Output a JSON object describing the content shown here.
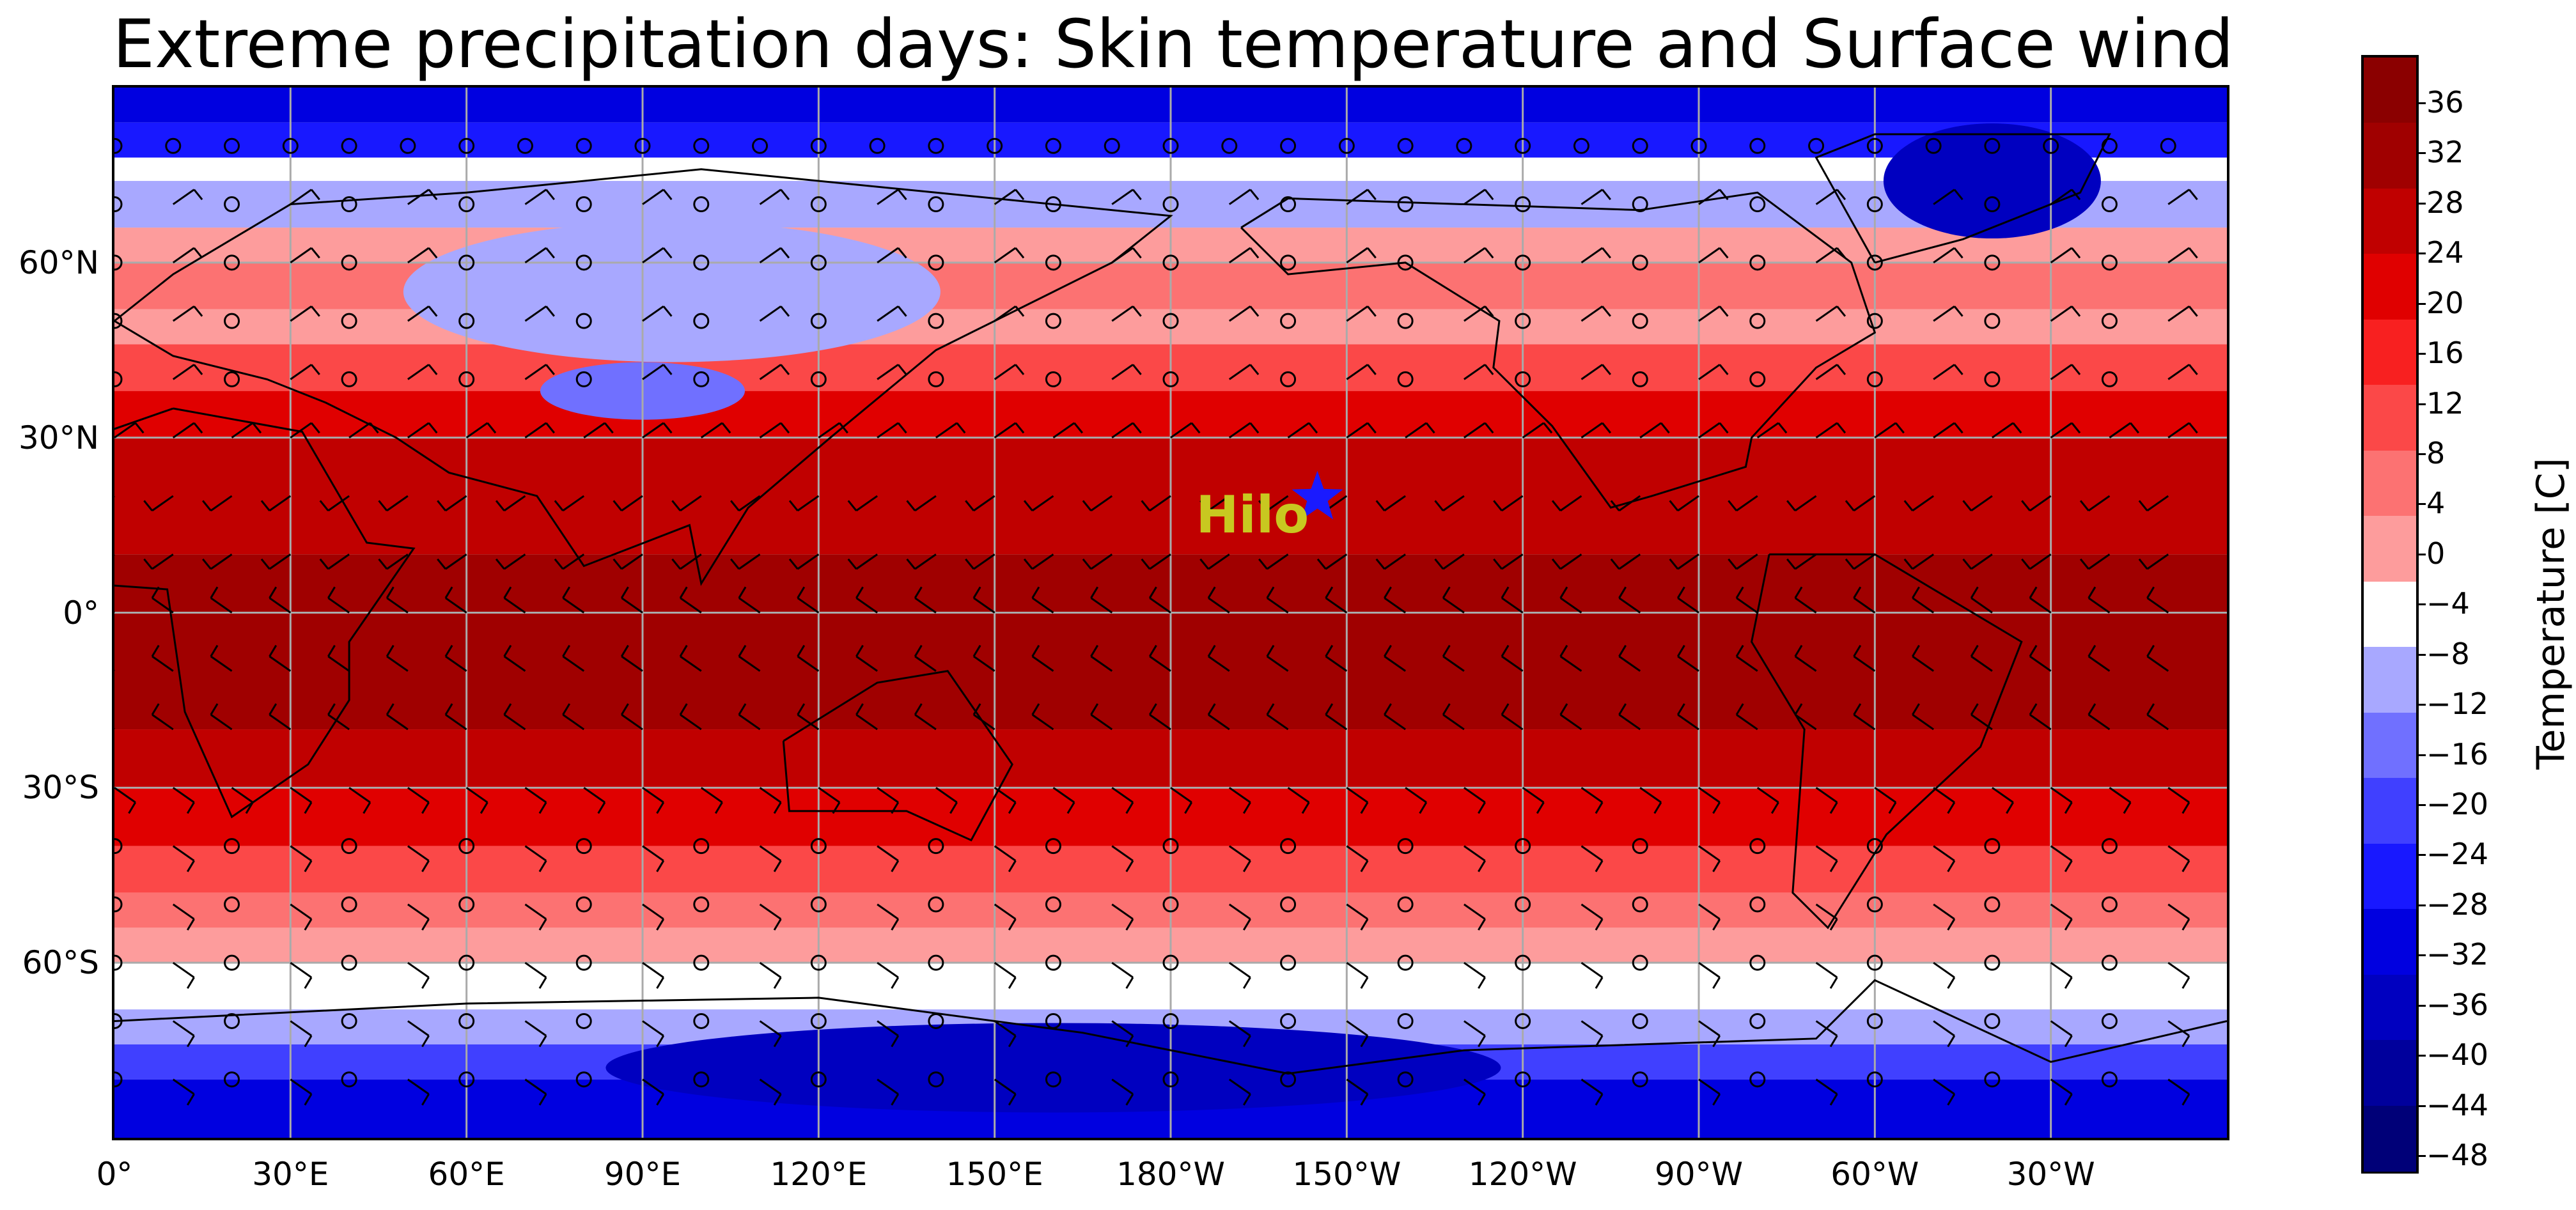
{
  "title": "Extreme precipitation days: Skin temperature and Surface wind",
  "x_ticks": [
    "0°",
    "30°E",
    "60°E",
    "90°E",
    "120°E",
    "150°E",
    "180°W",
    "150°W",
    "120°W",
    "90°W",
    "60°W",
    "30°W"
  ],
  "y_ticks": [
    "60°N",
    "30°N",
    "0°",
    "30°S",
    "60°S"
  ],
  "station_label": "Hilo",
  "station_marker": "star-icon",
  "colorbar": {
    "label": "Temperature [C]",
    "ticks": [
      "36",
      "32",
      "28",
      "24",
      "20",
      "16",
      "12",
      "8",
      "4",
      "0",
      "−4",
      "−8",
      "−12",
      "−16",
      "−20",
      "−24",
      "−28",
      "−32",
      "−36",
      "−40",
      "−44",
      "−48"
    ],
    "colors_top_to_bottom": [
      "#8b0000",
      "#a00000",
      "#c00000",
      "#e00000",
      "#f82020",
      "#fb4848",
      "#fc7272",
      "#fd9c9c",
      "#ffffff",
      "#a8a8ff",
      "#7070ff",
      "#4040ff",
      "#1818ff",
      "#0000e0",
      "#0000c0",
      "#00009c",
      "#000078"
    ]
  },
  "colors": {
    "station_label": "#c8c820",
    "station_marker": "#1a1aff",
    "grid": "#aaaaaa",
    "coastline": "#000000"
  }
}
